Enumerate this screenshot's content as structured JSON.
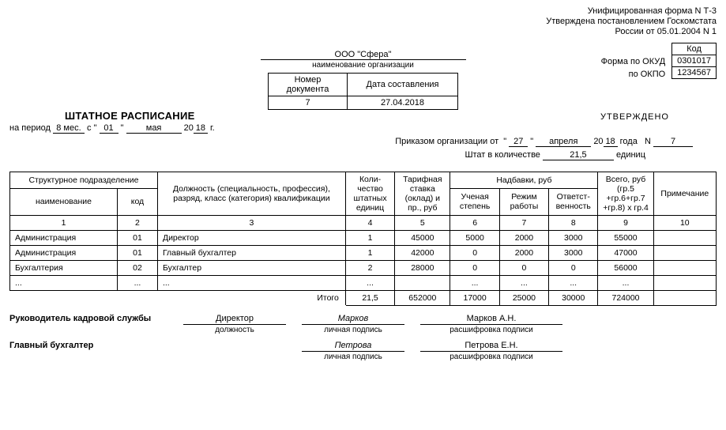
{
  "header": {
    "line1": "Унифицированная форма N Т-3",
    "line2": "Утверждена постановлением Госкомстата",
    "line3": "России от 05.01.2004 N 1"
  },
  "codes": {
    "kod_label": "Код",
    "okud_label": "Форма по ОКУД",
    "okud_value": "0301017",
    "okpo_label": "по ОКПО",
    "okpo_value": "1234567"
  },
  "org": {
    "name": "ООО \"Сфера\"",
    "caption": "наименование организации"
  },
  "docnum": {
    "num_label": "Номер документа",
    "date_label": "Дата составления",
    "num": "7",
    "date": "27.04.2018"
  },
  "title": "ШТАТНОЕ РАСПИСАНИЕ",
  "period": {
    "prefix": "на период",
    "months": "8 мес.",
    "s": "с",
    "day": "01",
    "month": "мая",
    "year_prefix": "20",
    "year": "18",
    "year_suffix": "г."
  },
  "approved": {
    "word": "УТВЕРЖДЕНО",
    "order_prefix": "Приказом организации от",
    "order_day": "27",
    "order_month": "апреля",
    "order_year_prefix": "20",
    "order_year": "18",
    "order_year_suffix": "года",
    "order_n": "N",
    "order_num": "7",
    "staff_prefix": "Штат в количестве",
    "staff_value": "21,5",
    "staff_units": "единиц"
  },
  "table": {
    "h_subdiv": "Структурное подразделение",
    "h_name": "наименование",
    "h_code": "код",
    "h_position": "Должность (специальность, профессия), разряд, класс (категория) квалификации",
    "h_qty": "Коли-\nчество штатных единиц",
    "h_rate": "Тарифная ставка (оклад) и пр., руб",
    "h_allow": "Надбавки, руб",
    "h_allow1": "Ученая степень",
    "h_allow2": "Режим работы",
    "h_allow3": "Ответст-венность",
    "h_total": "Всего, руб (гр.5 +гр.6+гр.7 +гр.8) х гр.4",
    "h_note": "Примечание",
    "nums": [
      "1",
      "2",
      "3",
      "4",
      "5",
      "6",
      "7",
      "8",
      "9",
      "10"
    ],
    "rows": [
      {
        "name": "Администрация",
        "code": "01",
        "pos": "Директор",
        "qty": "1",
        "rate": "45000",
        "a1": "5000",
        "a2": "2000",
        "a3": "3000",
        "tot": "55000",
        "note": ""
      },
      {
        "name": "Администрация",
        "code": "01",
        "pos": "Главный бухгалтер",
        "qty": "1",
        "rate": "42000",
        "a1": "0",
        "a2": "2000",
        "a3": "3000",
        "tot": "47000",
        "note": ""
      },
      {
        "name": "Бухгалтерия",
        "code": "02",
        "pos": "Бухгалтер",
        "qty": "2",
        "rate": "28000",
        "a1": "0",
        "a2": "0",
        "a3": "0",
        "tot": "56000",
        "note": ""
      },
      {
        "name": "...",
        "code": "...",
        "pos": "...",
        "qty": "...",
        "rate": "",
        "a1": "...",
        "a2": "...",
        "a3": "...",
        "tot": "...",
        "note": ""
      }
    ],
    "totals_label": "Итого",
    "totals": {
      "qty": "21,5",
      "rate": "652000",
      "a1": "17000",
      "a2": "25000",
      "a3": "30000",
      "tot": "724000"
    }
  },
  "sign": {
    "hr_label": "Руководитель кадровой службы",
    "hr_pos": "Директор",
    "hr_pos_cap": "должность",
    "hr_sign": "Марков",
    "hr_sign_cap": "личная подпись",
    "hr_decode": "Марков А.Н.",
    "hr_decode_cap": "расшифровка подписи",
    "acc_label": "Главный бухгалтер",
    "acc_sign": "Петрова",
    "acc_sign_cap": "личная подпись",
    "acc_decode": "Петрова Е.Н.",
    "acc_decode_cap": "расшифровка подписи"
  }
}
